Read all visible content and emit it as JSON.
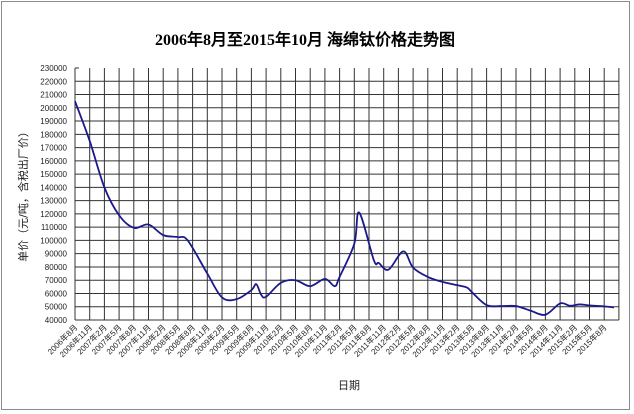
{
  "chart_data": {
    "type": "line",
    "title": "2006年8月至2015年10月 海绵钛价格走势图",
    "xlabel": "日期",
    "ylabel": "单价（元/吨，含税出厂价）",
    "ylim": [
      40000,
      230000
    ],
    "yticks": [
      40000,
      50000,
      60000,
      70000,
      80000,
      90000,
      100000,
      110000,
      120000,
      130000,
      140000,
      150000,
      160000,
      170000,
      180000,
      190000,
      200000,
      210000,
      220000,
      230000
    ],
    "xticks": [
      "2006年8月",
      "2006年11月",
      "2007年2月",
      "2007年5月",
      "2007年8月",
      "2007年11月",
      "2008年2月",
      "2008年5月",
      "2008年8月",
      "2008年11月",
      "2009年2月",
      "2009年5月",
      "2009年8月",
      "2009年11月",
      "2010年2月",
      "2010年5月",
      "2010年8月",
      "2010年11月",
      "2011年2月",
      "2011年5月",
      "2011年8月",
      "2011年11月",
      "2012年2月",
      "2012年5月",
      "2012年8月",
      "2012年11月",
      "2013年2月",
      "2013年5月",
      "2013年8月",
      "2013年11月",
      "2014年2月",
      "2014年5月",
      "2014年8月",
      "2014年11月",
      "2015年2月",
      "2015年5月",
      "2015年8月"
    ],
    "grid": true,
    "line_color": "#1a1a8c",
    "points": [
      {
        "x": "2006-08",
        "y": 205000
      },
      {
        "x": "2006-11",
        "y": 175000
      },
      {
        "x": "2007-02",
        "y": 140000
      },
      {
        "x": "2007-05",
        "y": 119000
      },
      {
        "x": "2007-08",
        "y": 109500
      },
      {
        "x": "2007-11",
        "y": 112000
      },
      {
        "x": "2008-02",
        "y": 104000
      },
      {
        "x": "2008-05",
        "y": 102500
      },
      {
        "x": "2008-07",
        "y": 100000
      },
      {
        "x": "2008-11",
        "y": 75000
      },
      {
        "x": "2009-02",
        "y": 57000
      },
      {
        "x": "2009-05",
        "y": 55750
      },
      {
        "x": "2009-08",
        "y": 62500
      },
      {
        "x": "2009-09",
        "y": 67000
      },
      {
        "x": "2009-10",
        "y": 59000
      },
      {
        "x": "2009-11",
        "y": 57500
      },
      {
        "x": "2010-02",
        "y": 68000
      },
      {
        "x": "2010-05",
        "y": 70000
      },
      {
        "x": "2010-08",
        "y": 65500
      },
      {
        "x": "2010-11",
        "y": 71000
      },
      {
        "x": "2011-01",
        "y": 65500
      },
      {
        "x": "2011-02",
        "y": 72500
      },
      {
        "x": "2011-05",
        "y": 97500
      },
      {
        "x": "2011-06",
        "y": 121000
      },
      {
        "x": "2011-09",
        "y": 85000
      },
      {
        "x": "2011-10",
        "y": 83000
      },
      {
        "x": "2011-12",
        "y": 78000
      },
      {
        "x": "2012-03",
        "y": 91750
      },
      {
        "x": "2012-05",
        "y": 79500
      },
      {
        "x": "2012-08",
        "y": 72500
      },
      {
        "x": "2012-11",
        "y": 68750
      },
      {
        "x": "2013-02",
        "y": 66250
      },
      {
        "x": "2013-04",
        "y": 64500
      },
      {
        "x": "2013-05",
        "y": 61000
      },
      {
        "x": "2013-08",
        "y": 51250
      },
      {
        "x": "2013-11",
        "y": 50500
      },
      {
        "x": "2014-02",
        "y": 50500
      },
      {
        "x": "2014-05",
        "y": 47000
      },
      {
        "x": "2014-08",
        "y": 44000
      },
      {
        "x": "2014-11",
        "y": 52500
      },
      {
        "x": "2015-01",
        "y": 50750
      },
      {
        "x": "2015-03",
        "y": 51750
      },
      {
        "x": "2015-05",
        "y": 51000
      },
      {
        "x": "2015-08",
        "y": 50250
      },
      {
        "x": "2015-10",
        "y": 49500
      }
    ]
  }
}
